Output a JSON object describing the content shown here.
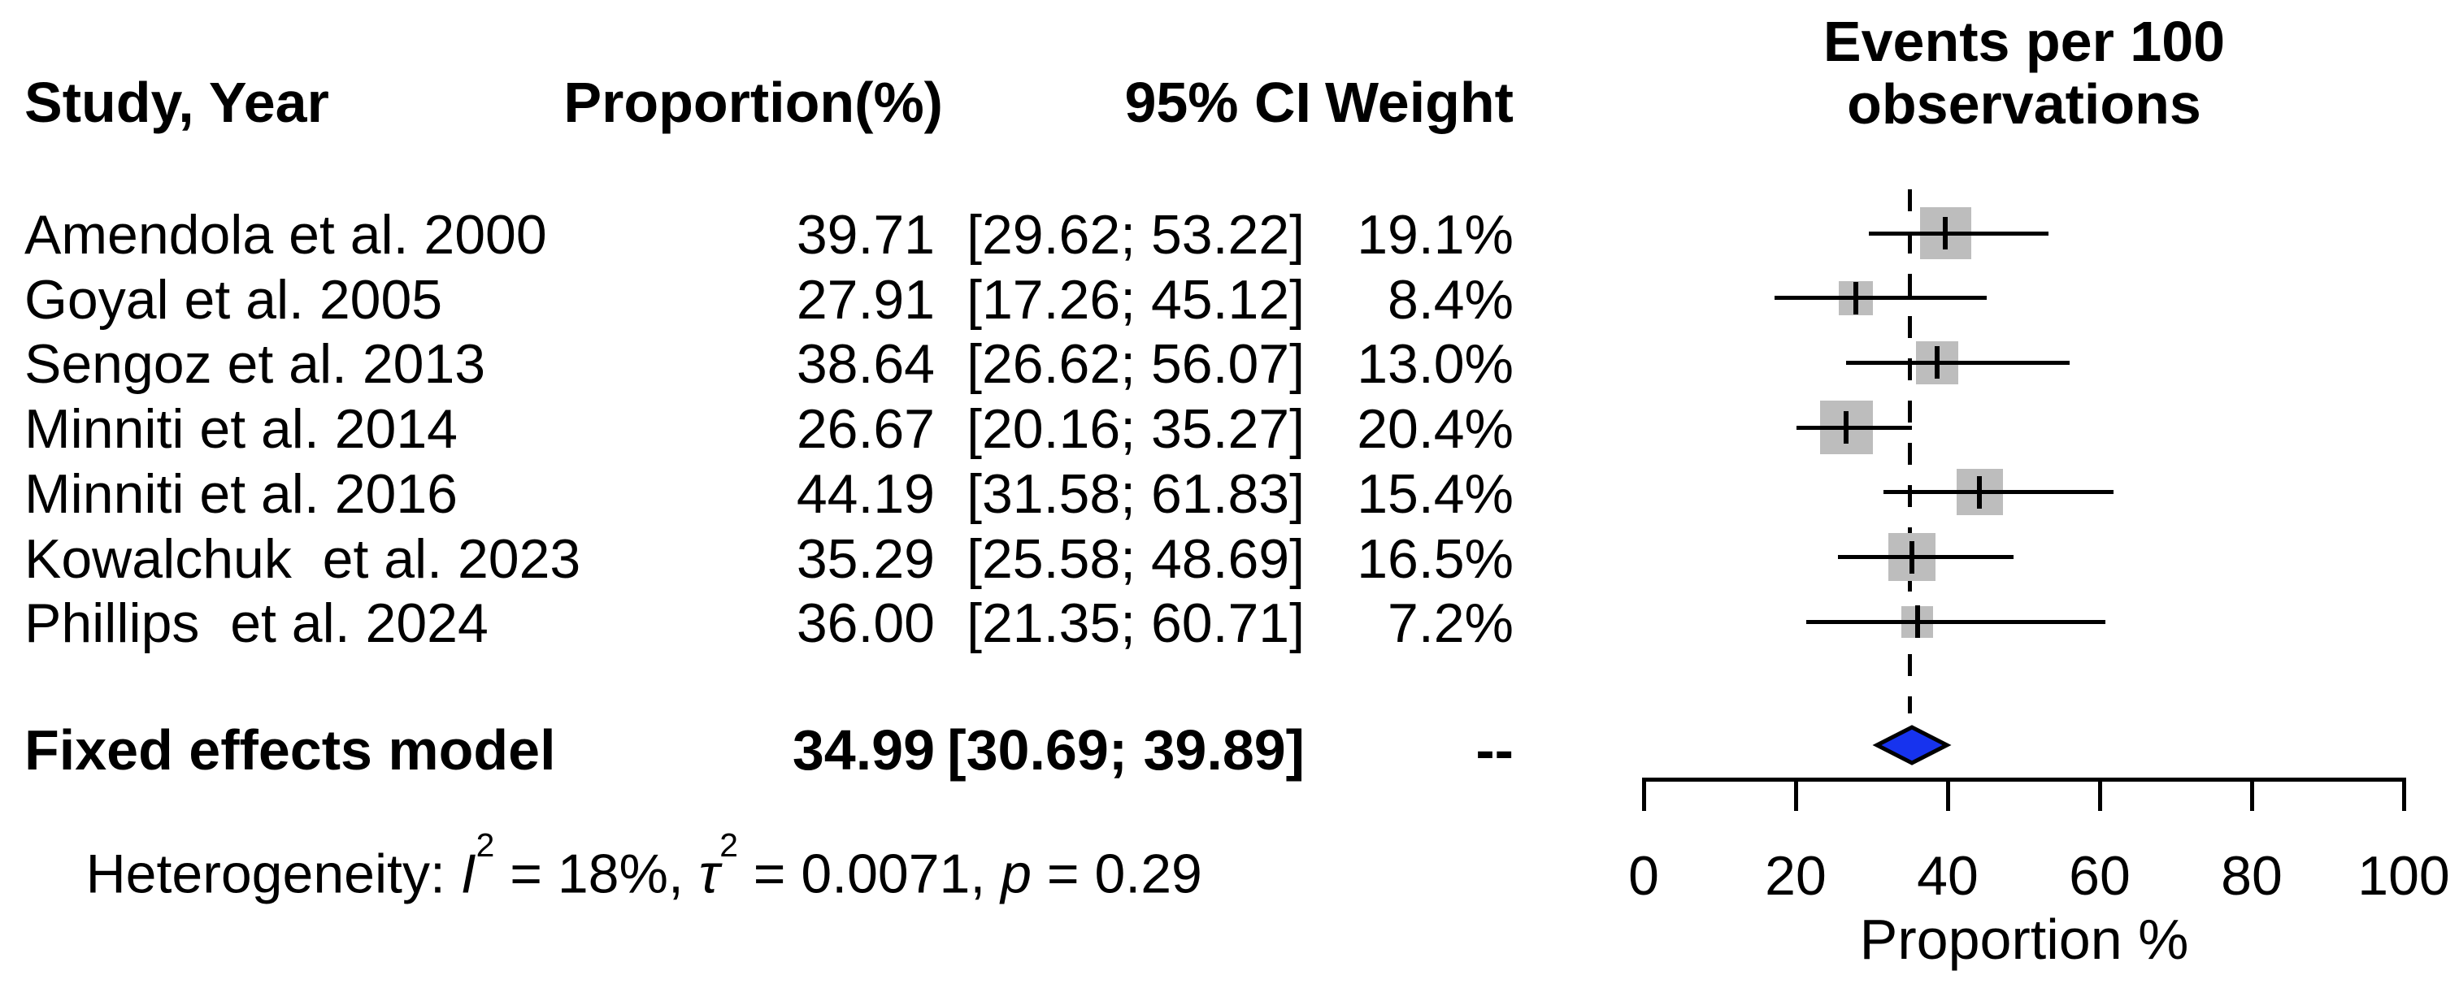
{
  "table": {
    "headers": {
      "study": "Study, Year",
      "proportion": "Proportion(%)",
      "ci": "95% CI",
      "weight": "Weight"
    },
    "plot_header": {
      "line1": "Events per 100",
      "line2": "observations"
    },
    "rows": [
      {
        "study": "Amendola et al. 2000",
        "proportion": "39.71",
        "ci": "[29.62; 53.22]",
        "weight": "19.1%"
      },
      {
        "study": "Goyal et al. 2005",
        "proportion": "27.91",
        "ci": "[17.26; 45.12]",
        "weight": "8.4%"
      },
      {
        "study": "Sengoz et al. 2013",
        "proportion": "38.64",
        "ci": "[26.62; 56.07]",
        "weight": "13.0%"
      },
      {
        "study": "Minniti et al. 2014",
        "proportion": "26.67",
        "ci": "[20.16; 35.27]",
        "weight": "20.4%"
      },
      {
        "study": "Minniti et al. 2016",
        "proportion": "44.19",
        "ci": "[31.58; 61.83]",
        "weight": "15.4%"
      },
      {
        "study": "Kowalchuk  et al. 2023",
        "proportion": "35.29",
        "ci": "[25.58; 48.69]",
        "weight": "16.5%"
      },
      {
        "study": "Phillips  et al. 2024",
        "proportion": "36.00",
        "ci": "[21.35; 60.71]",
        "weight": "7.2%"
      }
    ],
    "summary": {
      "study": "Fixed effects model",
      "proportion": "34.99",
      "ci": "[30.69; 39.89]",
      "weight": "--"
    },
    "heterogeneity": {
      "prefix": "Heterogeneity: ",
      "i_label": "I",
      "i_sup": "2",
      "i_rest": " = 18%, ",
      "tau_label": "τ",
      "tau_sup": "2",
      "tau_rest": " = 0.0071, ",
      "p_label": "p",
      "p_rest": " = 0.29"
    }
  },
  "chart_data": {
    "type": "forest",
    "title": "Events per 100 observations",
    "xlabel": "Proportion %",
    "xlim": [
      0,
      100
    ],
    "x_ticks": [
      0,
      20,
      40,
      60,
      80,
      100
    ],
    "reference_line": 34.99,
    "studies": [
      {
        "name": "Amendola et al. 2000",
        "estimate": 39.71,
        "ci_low": 29.62,
        "ci_high": 53.22,
        "weight_pct": 19.1
      },
      {
        "name": "Goyal et al. 2005",
        "estimate": 27.91,
        "ci_low": 17.26,
        "ci_high": 45.12,
        "weight_pct": 8.4
      },
      {
        "name": "Sengoz et al. 2013",
        "estimate": 38.64,
        "ci_low": 26.62,
        "ci_high": 56.07,
        "weight_pct": 13.0
      },
      {
        "name": "Minniti et al. 2014",
        "estimate": 26.67,
        "ci_low": 20.16,
        "ci_high": 35.27,
        "weight_pct": 20.4
      },
      {
        "name": "Minniti et al. 2016",
        "estimate": 44.19,
        "ci_low": 31.58,
        "ci_high": 61.83,
        "weight_pct": 15.4
      },
      {
        "name": "Kowalchuk et al. 2023",
        "estimate": 35.29,
        "ci_low": 25.58,
        "ci_high": 48.69,
        "weight_pct": 16.5
      },
      {
        "name": "Phillips et al. 2024",
        "estimate": 36.0,
        "ci_low": 21.35,
        "ci_high": 60.71,
        "weight_pct": 7.2
      }
    ],
    "summary": {
      "model": "Fixed effects model",
      "estimate": 34.99,
      "ci_low": 30.69,
      "ci_high": 39.89
    },
    "heterogeneity": {
      "I2": "18%",
      "tau2": 0.0071,
      "p": 0.29
    },
    "colors": {
      "square_gray": "#bdbdbd",
      "diamond_fill": "#1733ee",
      "diamond_border": "#000000",
      "line_black": "#000000",
      "background": "#ffffff"
    }
  }
}
